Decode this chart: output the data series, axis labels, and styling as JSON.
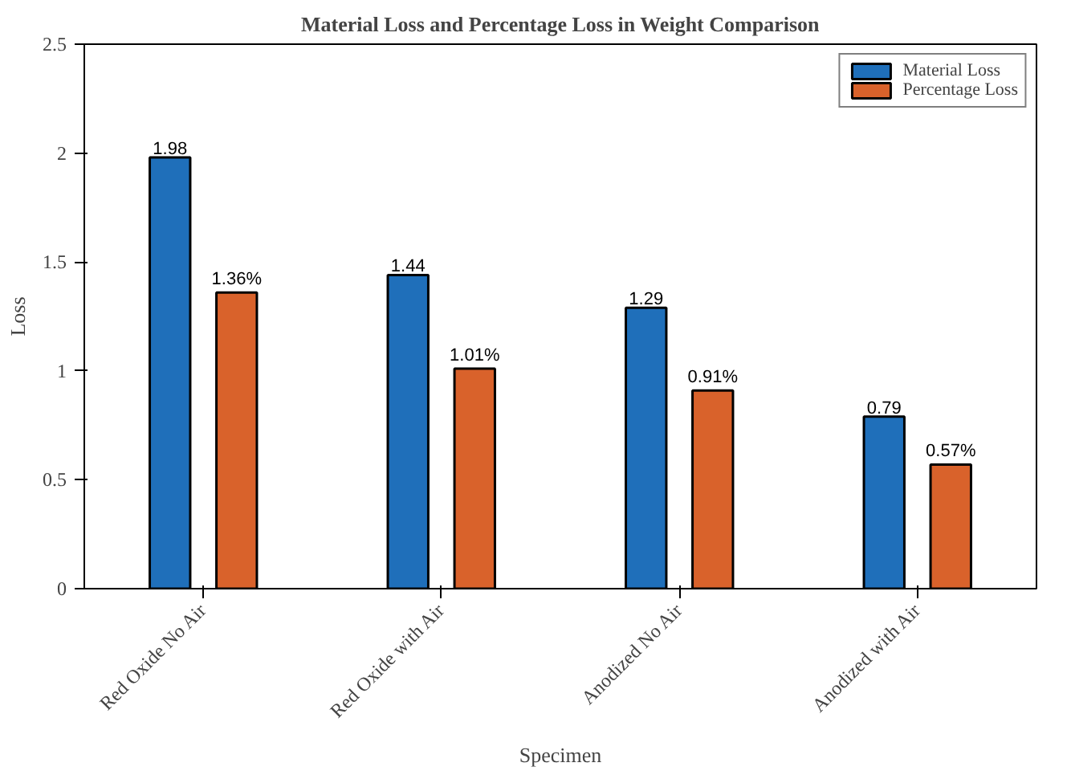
{
  "chart_data": {
    "type": "bar",
    "title": "Material Loss and Percentage Loss in Weight Comparison",
    "xlabel": "Specimen",
    "ylabel": "Loss",
    "categories": [
      "Red Oxide No Air",
      "Red Oxide with Air",
      "Anodized No Air",
      "Anodized with Air"
    ],
    "series": [
      {
        "name": "Material Loss",
        "color": "#1f6fba",
        "values": [
          1.98,
          1.44,
          1.29,
          0.79
        ],
        "value_labels": [
          "1.98",
          "1.44",
          "1.29",
          "0.79"
        ]
      },
      {
        "name": "Percentage Loss",
        "color": "#d9622b",
        "values": [
          1.36,
          1.01,
          0.91,
          0.57
        ],
        "value_labels": [
          "1.36%",
          "1.01%",
          "0.91%",
          "0.57%"
        ]
      }
    ],
    "ylim": [
      0,
      2.5
    ],
    "yticks": [
      0,
      0.5,
      1,
      1.5,
      2,
      2.5
    ],
    "grid": false,
    "legend": "top right"
  }
}
